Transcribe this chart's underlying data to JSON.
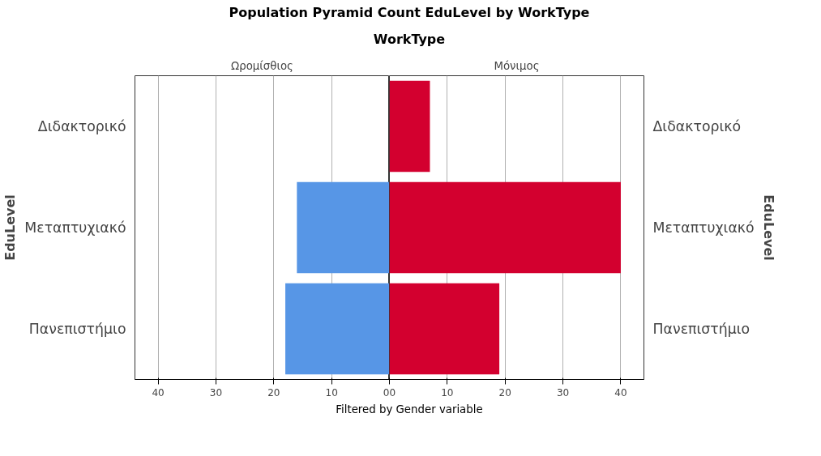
{
  "chart_data": [
    {
      "type": "bar",
      "orientation": "horizontal",
      "title": "Population Pyramid Count EduLevel  by WorkType",
      "subtitle": "WorkType",
      "ylabel": "EduLevel",
      "categories": [
        "Διδακτορικό",
        "Μεταπτυχιακό",
        "Πανεπιστήμιο"
      ],
      "series": [
        {
          "name": "Ωρομίσθιος",
          "color": "#5796e6",
          "values": [
            null,
            16,
            18
          ]
        }
      ],
      "xlim": [
        44,
        0
      ],
      "xticks": [
        40,
        30,
        20,
        10,
        0
      ],
      "grid": "x",
      "annotations": [
        "Filtered by Gender variable"
      ]
    },
    {
      "type": "bar",
      "orientation": "horizontal",
      "y2label": "EduLevel",
      "categories": [
        "Διδακτορικό",
        "Μεταπτυχιακό",
        "Πανεπιστήμιο"
      ],
      "series": [
        {
          "name": "Μόνιμος",
          "color": "#d3002f",
          "values": [
            7,
            40,
            19
          ]
        }
      ],
      "xlim": [
        0,
        44
      ],
      "xticks": [
        0,
        10,
        20,
        30,
        40
      ],
      "grid": "x"
    }
  ]
}
